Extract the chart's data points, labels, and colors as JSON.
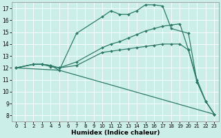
{
  "xlabel": "Humidex (Indice chaleur)",
  "bg_color": "#cceee8",
  "grid_color": "#ffffff",
  "line_color": "#2d7a6a",
  "marker": "D",
  "markersize": 2.0,
  "linewidth": 0.9,
  "xlim": [
    -0.5,
    23.5
  ],
  "ylim": [
    7.5,
    17.5
  ],
  "xticks": [
    0,
    1,
    2,
    3,
    4,
    5,
    6,
    7,
    8,
    9,
    10,
    11,
    12,
    13,
    14,
    15,
    16,
    17,
    18,
    19,
    20,
    21,
    22,
    23
  ],
  "yticks": [
    8,
    9,
    10,
    11,
    12,
    13,
    14,
    15,
    16,
    17
  ],
  "lines": [
    {
      "x": [
        0,
        2,
        3,
        4,
        5,
        7,
        10,
        11,
        12,
        13,
        14,
        15,
        16,
        17,
        18,
        20,
        21,
        22,
        23
      ],
      "y": [
        12,
        12.3,
        12.3,
        12.2,
        11.8,
        14.9,
        16.3,
        16.8,
        16.5,
        16.5,
        16.8,
        17.3,
        17.3,
        17.2,
        15.3,
        14.9,
        10.8,
        9.2,
        8.1
      ]
    },
    {
      "x": [
        0,
        2,
        3,
        4,
        5,
        7,
        10,
        11,
        12,
        13,
        14,
        15,
        16,
        17,
        18,
        19,
        20,
        21,
        22,
        23
      ],
      "y": [
        12,
        12.3,
        12.3,
        12.2,
        12.0,
        12.5,
        13.7,
        14.0,
        14.2,
        14.5,
        14.8,
        15.1,
        15.3,
        15.5,
        15.6,
        15.7,
        13.5,
        10.8,
        9.2,
        8.1
      ]
    },
    {
      "x": [
        0,
        2,
        3,
        4,
        5,
        7,
        10,
        11,
        12,
        13,
        14,
        15,
        16,
        17,
        18,
        19,
        20,
        21,
        22,
        23
      ],
      "y": [
        12,
        12.3,
        12.3,
        12.1,
        12.0,
        12.2,
        13.3,
        13.4,
        13.5,
        13.6,
        13.7,
        13.8,
        13.9,
        14.0,
        14.0,
        14.0,
        13.5,
        11.0,
        9.2,
        8.1
      ]
    },
    {
      "x": [
        0,
        5,
        23
      ],
      "y": [
        12,
        11.8,
        8.1
      ]
    }
  ]
}
